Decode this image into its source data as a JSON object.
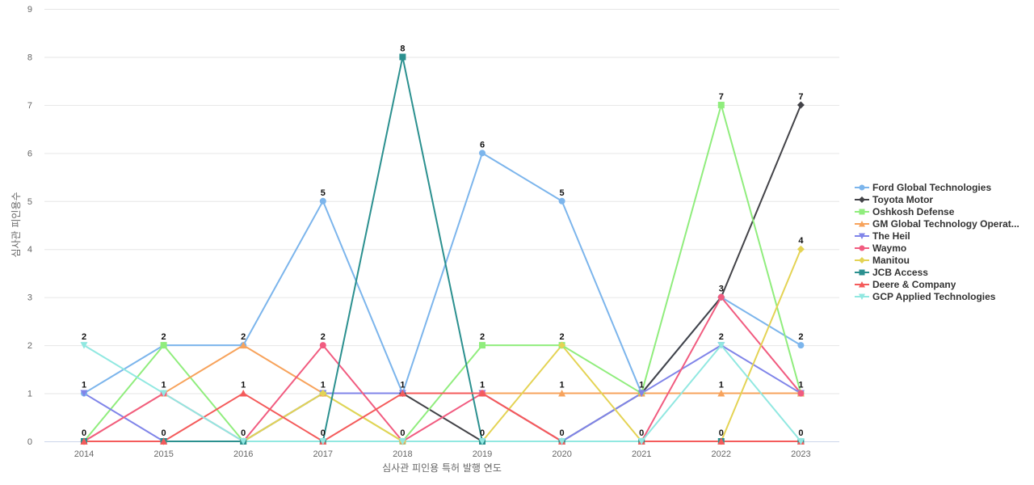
{
  "chart_data": {
    "type": "line",
    "xlabel": "심사관 피인용 특허 발행 연도",
    "ylabel": "심사관 피인용수",
    "x": [
      "2014",
      "2015",
      "2016",
      "2017",
      "2018",
      "2019",
      "2020",
      "2021",
      "2022",
      "2023"
    ],
    "yticks": [
      "0",
      "1",
      "2",
      "3",
      "4",
      "5",
      "6",
      "7",
      "8",
      "9"
    ],
    "ylim": [
      0,
      9
    ],
    "grid": "horizontal",
    "legend_position": "right",
    "series": [
      {
        "name": "Ford Global Technologies",
        "color": "#7cb5ec",
        "marker": "circle",
        "values": [
          1,
          2,
          2,
          5,
          1,
          6,
          5,
          1,
          3,
          2
        ],
        "labels": [
          "1",
          "2",
          "2",
          "5",
          "1",
          "6",
          "5",
          "1",
          "3",
          "2"
        ]
      },
      {
        "name": "Toyota Motor",
        "color": "#434348",
        "marker": "diamond",
        "values": [
          0,
          0,
          0,
          1,
          1,
          0,
          0,
          1,
          3,
          7
        ],
        "labels": [
          "",
          "",
          "",
          "",
          "",
          "",
          "",
          "",
          "",
          "7"
        ]
      },
      {
        "name": "Oshkosh Defense",
        "color": "#90ed7d",
        "marker": "square",
        "values": [
          0,
          2,
          0,
          1,
          0,
          2,
          2,
          1,
          7,
          1
        ],
        "labels": [
          "",
          "",
          "",
          "",
          "",
          "2",
          "",
          "",
          "7",
          ""
        ]
      },
      {
        "name": "GM Global Technology Operat...",
        "color": "#f7a35c",
        "marker": "triangle",
        "values": [
          0,
          1,
          2,
          1,
          1,
          1,
          1,
          1,
          1,
          1
        ],
        "labels": [
          "",
          "",
          "",
          "",
          "",
          "",
          "1",
          "",
          "1",
          ""
        ]
      },
      {
        "name": "The Heil",
        "color": "#8085e9",
        "marker": "triangle-down",
        "values": [
          1,
          0,
          0,
          1,
          1,
          1,
          0,
          1,
          2,
          1
        ],
        "labels": [
          "",
          "",
          "",
          "",
          "",
          "",
          "",
          "",
          "",
          ""
        ]
      },
      {
        "name": "Waymo",
        "color": "#f15c80",
        "marker": "circle",
        "values": [
          0,
          1,
          0,
          2,
          0,
          1,
          0,
          0,
          3,
          1
        ],
        "labels": [
          "",
          "",
          "",
          "2",
          "",
          "",
          "",
          "",
          "",
          ""
        ]
      },
      {
        "name": "Manitou",
        "color": "#e4d354",
        "marker": "diamond",
        "values": [
          0,
          0,
          0,
          1,
          0,
          0,
          2,
          0,
          0,
          4
        ],
        "labels": [
          "",
          "",
          "",
          "",
          "",
          "",
          "",
          "",
          "",
          "4"
        ]
      },
      {
        "name": "JCB Access",
        "color": "#2b908f",
        "marker": "square",
        "values": [
          0,
          0,
          0,
          0,
          8,
          0,
          0,
          0,
          0,
          0
        ],
        "labels": [
          "",
          "",
          "",
          "",
          "8",
          "",
          "",
          "",
          "",
          ""
        ]
      },
      {
        "name": "Deere & Company",
        "color": "#f45b5b",
        "marker": "triangle",
        "values": [
          0,
          0,
          1,
          0,
          1,
          1,
          0,
          0,
          0,
          0
        ],
        "labels": [
          "",
          "",
          "1",
          "",
          "",
          "",
          "",
          "",
          "",
          ""
        ]
      },
      {
        "name": "GCP Applied Technologies",
        "color": "#91e8e1",
        "marker": "triangle-down",
        "values": [
          2,
          1,
          0,
          0,
          0,
          0,
          0,
          0,
          2,
          0
        ],
        "labels": [
          "",
          "",
          "",
          "",
          "",
          "",
          "",
          "",
          "",
          ""
        ]
      }
    ],
    "extra_labels": [
      {
        "x": "2014",
        "y": 2,
        "text": "2"
      },
      {
        "x": "2014",
        "y": 0,
        "text": "0"
      },
      {
        "x": "2015",
        "y": 1,
        "text": "1"
      },
      {
        "x": "2015",
        "y": 0,
        "text": "0"
      },
      {
        "x": "2016",
        "y": 0,
        "text": "0"
      },
      {
        "x": "2017",
        "y": 1,
        "text": "1"
      },
      {
        "x": "2017",
        "y": 0,
        "text": "0"
      },
      {
        "x": "2018",
        "y": 0,
        "text": "0"
      },
      {
        "x": "2019",
        "y": 1,
        "text": "1"
      },
      {
        "x": "2019",
        "y": 0,
        "text": "0"
      },
      {
        "x": "2020",
        "y": 2,
        "text": "2"
      },
      {
        "x": "2020",
        "y": 0,
        "text": "0"
      },
      {
        "x": "2021",
        "y": 0,
        "text": "0"
      },
      {
        "x": "2022",
        "y": 2,
        "text": "2"
      },
      {
        "x": "2022",
        "y": 0,
        "text": "0"
      },
      {
        "x": "2023",
        "y": 1,
        "text": "1"
      },
      {
        "x": "2023",
        "y": 0,
        "text": "0"
      }
    ]
  }
}
